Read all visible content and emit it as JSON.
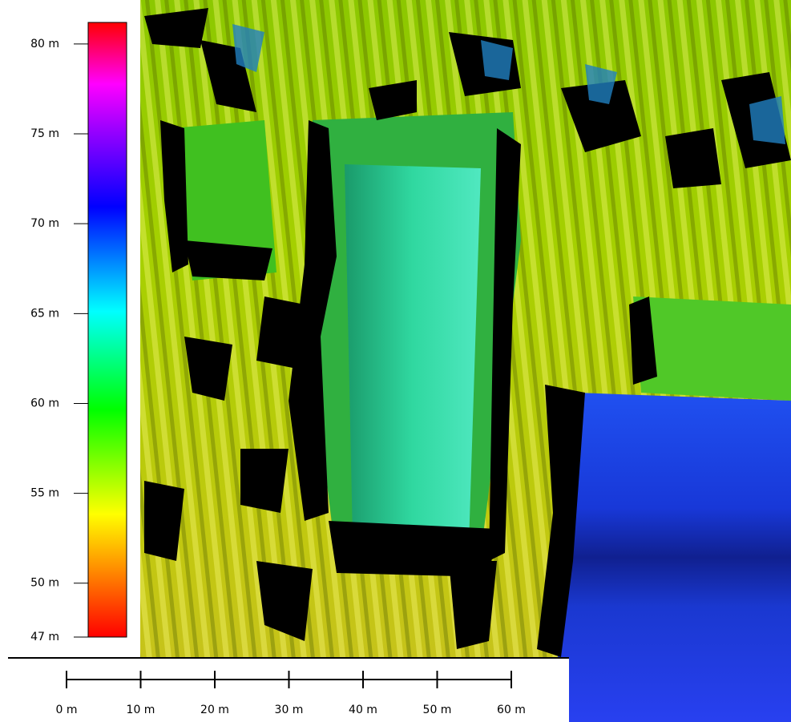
{
  "legend": {
    "range": [
      47,
      81.2
    ],
    "ticks": [
      {
        "value": 80,
        "label": "80 m"
      },
      {
        "value": 75,
        "label": "75 m"
      },
      {
        "value": 70,
        "label": "70 m"
      },
      {
        "value": 65,
        "label": "65 m"
      },
      {
        "value": 60,
        "label": "60 m"
      },
      {
        "value": 55,
        "label": "55 m"
      },
      {
        "value": 50,
        "label": "50 m"
      },
      {
        "value": 47,
        "label": "47 m"
      }
    ]
  },
  "scale_bar": {
    "range": [
      0,
      60
    ],
    "ticks": [
      {
        "value": 0,
        "label": "0 m"
      },
      {
        "value": 10,
        "label": "10 m"
      },
      {
        "value": 20,
        "label": "20 m"
      },
      {
        "value": 30,
        "label": "30 m"
      },
      {
        "value": 40,
        "label": "40 m"
      },
      {
        "value": 50,
        "label": "50 m"
      },
      {
        "value": 60,
        "label": "60 m"
      }
    ]
  }
}
